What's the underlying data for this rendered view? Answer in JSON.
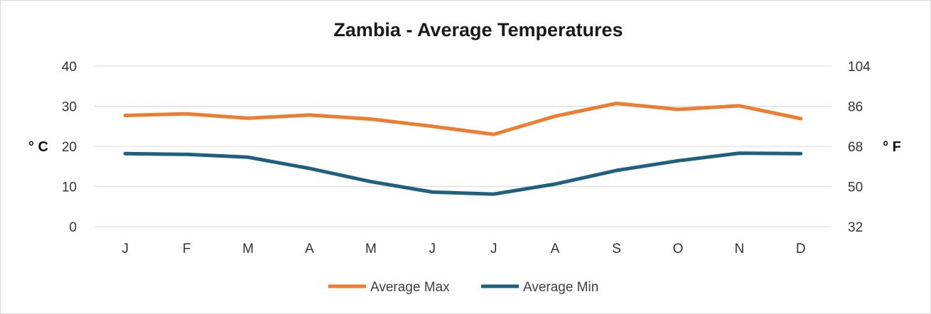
{
  "chart_data": {
    "type": "line",
    "title": "Zambia - Average Temperatures",
    "categories": [
      "J",
      "F",
      "M",
      "A",
      "M",
      "J",
      "J",
      "A",
      "S",
      "O",
      "N",
      "D"
    ],
    "series": [
      {
        "name": "Average Max",
        "color": "#ed7d31",
        "values": [
          27.7,
          28.1,
          27.0,
          27.8,
          26.8,
          25.0,
          23.0,
          27.5,
          30.7,
          29.2,
          30.1,
          26.9
        ]
      },
      {
        "name": "Average Min",
        "color": "#1f5f7f",
        "values": [
          18.2,
          18.0,
          17.3,
          14.5,
          11.2,
          8.6,
          8.1,
          10.6,
          14.0,
          16.4,
          18.3,
          18.2
        ]
      }
    ],
    "y_left": {
      "label": "° C",
      "ylim": [
        0,
        40
      ],
      "ticks": [
        "0",
        "10",
        "20",
        "30",
        "40"
      ]
    },
    "y_right": {
      "label": "° F",
      "ylim": [
        32,
        104
      ],
      "ticks": [
        "32",
        "50",
        "68",
        "86",
        "104"
      ]
    },
    "grid": true,
    "legend_position": "bottom"
  }
}
